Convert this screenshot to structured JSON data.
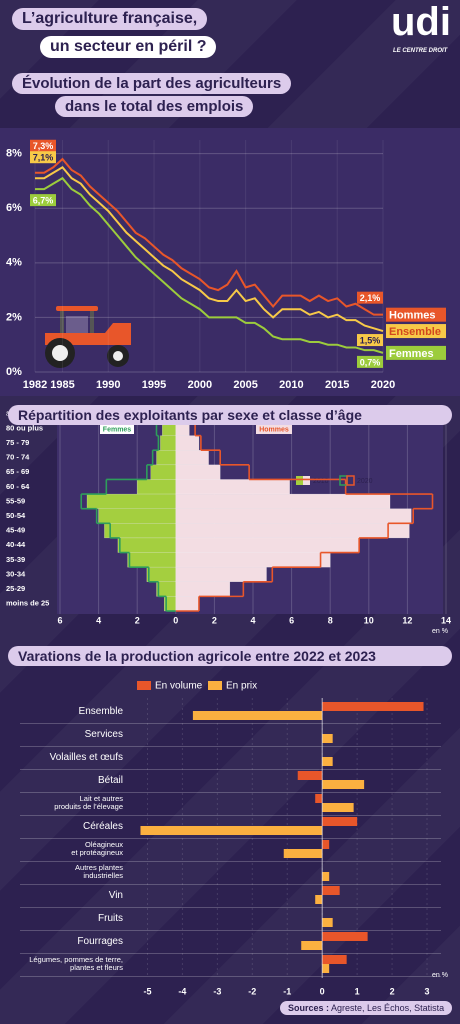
{
  "header": {
    "title": [
      "L’agriculture française,",
      "un secteur en péril ?"
    ],
    "logo": "udi",
    "logo_tagline": "LE CENTRE DROIT"
  },
  "chart_data": [
    {
      "type": "line",
      "title": [
        "Évolution de la part des agriculteurs",
        "dans le total des emplois"
      ],
      "x": [
        1982,
        1983,
        1984,
        1985,
        1986,
        1987,
        1988,
        1989,
        1990,
        1991,
        1992,
        1993,
        1994,
        1995,
        1996,
        1997,
        1998,
        1999,
        2000,
        2001,
        2002,
        2003,
        2004,
        2005,
        2006,
        2007,
        2008,
        2009,
        2010,
        2011,
        2012,
        2013,
        2014,
        2015,
        2016,
        2017,
        2018,
        2019,
        2020
      ],
      "xlim": [
        1982,
        2020
      ],
      "xticks": [
        1982,
        1985,
        1990,
        1995,
        2000,
        2005,
        2010,
        2015,
        2020
      ],
      "ylim": [
        0,
        8.5
      ],
      "yticks": [
        {
          "value": 0,
          "label": "0%"
        },
        {
          "value": 2,
          "label": "2%"
        },
        {
          "value": 4,
          "label": "4%"
        },
        {
          "value": 6,
          "label": "6%"
        },
        {
          "value": 8,
          "label": "8%"
        }
      ],
      "grid": true,
      "series": [
        {
          "name": "Hommes",
          "color": "#e8562a",
          "values": [
            7.3,
            7.3,
            7.5,
            7.8,
            7.4,
            7.2,
            6.8,
            6.5,
            6.2,
            5.9,
            5.5,
            5.1,
            4.9,
            4.6,
            4.3,
            4.1,
            3.8,
            3.6,
            3.4,
            3.1,
            3.0,
            3.2,
            3.7,
            3.1,
            3.2,
            2.8,
            2.4,
            2.8,
            2.8,
            2.8,
            2.6,
            2.8,
            2.6,
            2.7,
            2.4,
            2.5,
            2.3,
            2.1,
            2.1
          ],
          "value_labels": [
            "7,3%",
            null,
            null,
            null,
            null,
            null,
            null,
            null,
            null,
            null,
            null,
            null,
            null,
            null,
            null,
            null,
            null,
            null,
            null,
            null,
            null,
            null,
            null,
            null,
            null,
            null,
            null,
            null,
            null,
            null,
            null,
            null,
            null,
            null,
            null,
            null,
            null,
            null,
            "2,1%"
          ]
        },
        {
          "name": "Ensemble",
          "color": "#f7c948",
          "values": [
            7.1,
            7.1,
            7.3,
            7.5,
            7.1,
            6.9,
            6.5,
            6.2,
            5.9,
            5.5,
            5.1,
            4.8,
            4.5,
            4.2,
            3.9,
            3.7,
            3.4,
            3.2,
            3.0,
            2.7,
            2.6,
            2.6,
            3.0,
            2.6,
            2.7,
            2.3,
            2.0,
            2.3,
            2.3,
            2.3,
            2.1,
            2.2,
            2.0,
            2.1,
            1.9,
            1.9,
            1.7,
            1.6,
            1.5
          ],
          "value_labels": [
            "7,1%",
            null,
            null,
            null,
            null,
            null,
            null,
            null,
            null,
            null,
            null,
            null,
            null,
            null,
            null,
            null,
            null,
            null,
            null,
            null,
            null,
            null,
            null,
            null,
            null,
            null,
            null,
            null,
            null,
            null,
            null,
            null,
            null,
            null,
            null,
            null,
            null,
            null,
            "1,5%"
          ]
        },
        {
          "name": "Femmes",
          "color": "#9ccc3c",
          "values": [
            6.7,
            6.7,
            6.9,
            7.1,
            6.7,
            6.5,
            6.1,
            5.8,
            5.4,
            5.0,
            4.6,
            4.2,
            3.9,
            3.6,
            3.3,
            3.0,
            2.7,
            2.5,
            2.3,
            2.0,
            2.0,
            2.0,
            2.0,
            1.8,
            1.8,
            1.6,
            1.3,
            1.2,
            1.2,
            1.2,
            1.1,
            1.1,
            1.0,
            1.0,
            0.9,
            0.9,
            0.8,
            0.8,
            0.7
          ],
          "value_labels": [
            "6,7%",
            null,
            null,
            null,
            null,
            null,
            null,
            null,
            null,
            null,
            null,
            null,
            null,
            null,
            null,
            null,
            null,
            null,
            null,
            null,
            null,
            null,
            null,
            null,
            null,
            null,
            null,
            null,
            null,
            null,
            null,
            null,
            null,
            null,
            null,
            null,
            null,
            null,
            "0,7%"
          ]
        }
      ]
    },
    {
      "type": "pyramid",
      "title": "Répartition des exploitants par sexe et classe d’âge",
      "y_label": "âge en années",
      "categories": [
        "80 ou plus",
        "75 - 79",
        "70 - 74",
        "65 - 69",
        "60 - 64",
        "55-59",
        "50-54",
        "45-49",
        "40-44",
        "35-39",
        "30-34",
        "25-29",
        "moins de 25"
      ],
      "groups": [
        "Femmes",
        "Hommes"
      ],
      "xlim": [
        -6,
        14
      ],
      "xticks": [
        {
          "value": -6,
          "label": "6"
        },
        {
          "value": -4,
          "label": "4"
        },
        {
          "value": -2,
          "label": "2"
        },
        0,
        2,
        4,
        6,
        8,
        10,
        12,
        14
      ],
      "x_label": "en %",
      "series": [
        {
          "name": "2010",
          "style": "fill",
          "colors": [
            "#a4cf3f",
            "#f3dde3"
          ],
          "Femmes": [
            0.7,
            0.8,
            1.0,
            1.3,
            2.0,
            4.6,
            4.0,
            3.7,
            3.0,
            2.5,
            1.5,
            1.0,
            0.6
          ],
          "Hommes": [
            0.7,
            1.2,
            1.7,
            2.3,
            5.9,
            11.1,
            12.2,
            12.1,
            9.5,
            8.0,
            4.7,
            2.8,
            1.2
          ]
        },
        {
          "name": "2020",
          "style": "outline",
          "colors": [
            "#2e9e5b",
            "#e8562a"
          ],
          "Femmes": [
            1.0,
            0.9,
            1.2,
            1.5,
            3.6,
            4.9,
            4.1,
            3.4,
            2.9,
            2.4,
            1.4,
            0.9,
            0.5
          ],
          "Hommes": [
            1.0,
            1.3,
            2.3,
            3.8,
            8.8,
            13.3,
            12.3,
            11.0,
            9.5,
            7.5,
            5.0,
            3.5,
            1.2
          ]
        }
      ]
    },
    {
      "type": "hbar",
      "title": "Varations de la production agricole entre 2022 et 2023",
      "categories": [
        "Ensemble",
        "Services",
        "Volailles et œufs",
        "Bétail",
        "Lait et autres\nproduits de l’élevage",
        "Céréales",
        "Oléagineux\net protéagineux",
        "Autres plantes\nindustrielles",
        "Vin",
        "Fruits",
        "Fourrages",
        "Légumes, pommes de terre,\nplantes et fleurs"
      ],
      "xlim": [
        -5.5,
        3.4
      ],
      "xticks": [
        -5,
        -4,
        -3,
        -2,
        -1,
        0,
        1,
        2,
        3
      ],
      "x_label": "en %",
      "series": [
        {
          "name": "En volume",
          "color": "#e8562a",
          "values": [
            2.9,
            0,
            0,
            -0.7,
            -0.2,
            1.0,
            0.2,
            0,
            0.5,
            0,
            1.3,
            0.7
          ]
        },
        {
          "name": "En prix",
          "color": "#fbb040",
          "values": [
            -3.7,
            0.3,
            0.3,
            1.2,
            0.9,
            -5.2,
            -1.1,
            0.2,
            -0.2,
            0.3,
            -0.6,
            0.2
          ]
        }
      ]
    }
  ],
  "footer": {
    "sources_label": "Sources :",
    "sources": "Agreste, Les Échos, Statista"
  }
}
